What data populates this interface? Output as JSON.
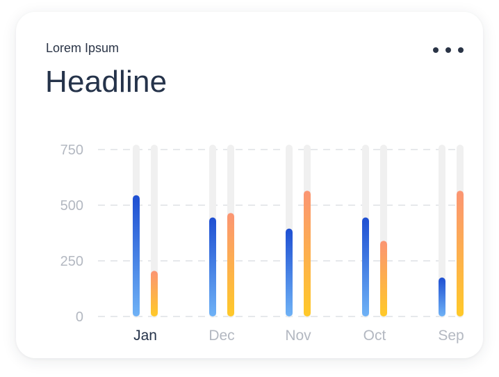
{
  "card": {
    "eyebrow": "Lorem Ipsum",
    "headline": "Headline",
    "menu_icon": "more-horizontal-icon"
  },
  "colors": {
    "text_dark": "#25334a",
    "axis_label": "#b3b8c1",
    "gridline": "#e6e8eb",
    "bar_track": "#f0f0f0",
    "series_blue_top": "#1e4fd2",
    "series_blue_bottom": "#6fb2f6",
    "series_orange_top": "#fb9573",
    "series_orange_bottom": "#ffc928"
  },
  "chart_data": {
    "type": "bar",
    "categories": [
      "Jan",
      "Dec",
      "Nov",
      "Oct",
      "Sep"
    ],
    "selected_category": "Jan",
    "series": [
      {
        "values": [
          545,
          445,
          395,
          445,
          175
        ],
        "color": "blue"
      },
      {
        "values": [
          205,
          465,
          565,
          340,
          565
        ],
        "color": "orange"
      }
    ],
    "yticks": [
      "0",
      "250",
      "500",
      "750"
    ],
    "ylim": [
      0,
      750
    ],
    "grid": true,
    "legend": "none"
  }
}
